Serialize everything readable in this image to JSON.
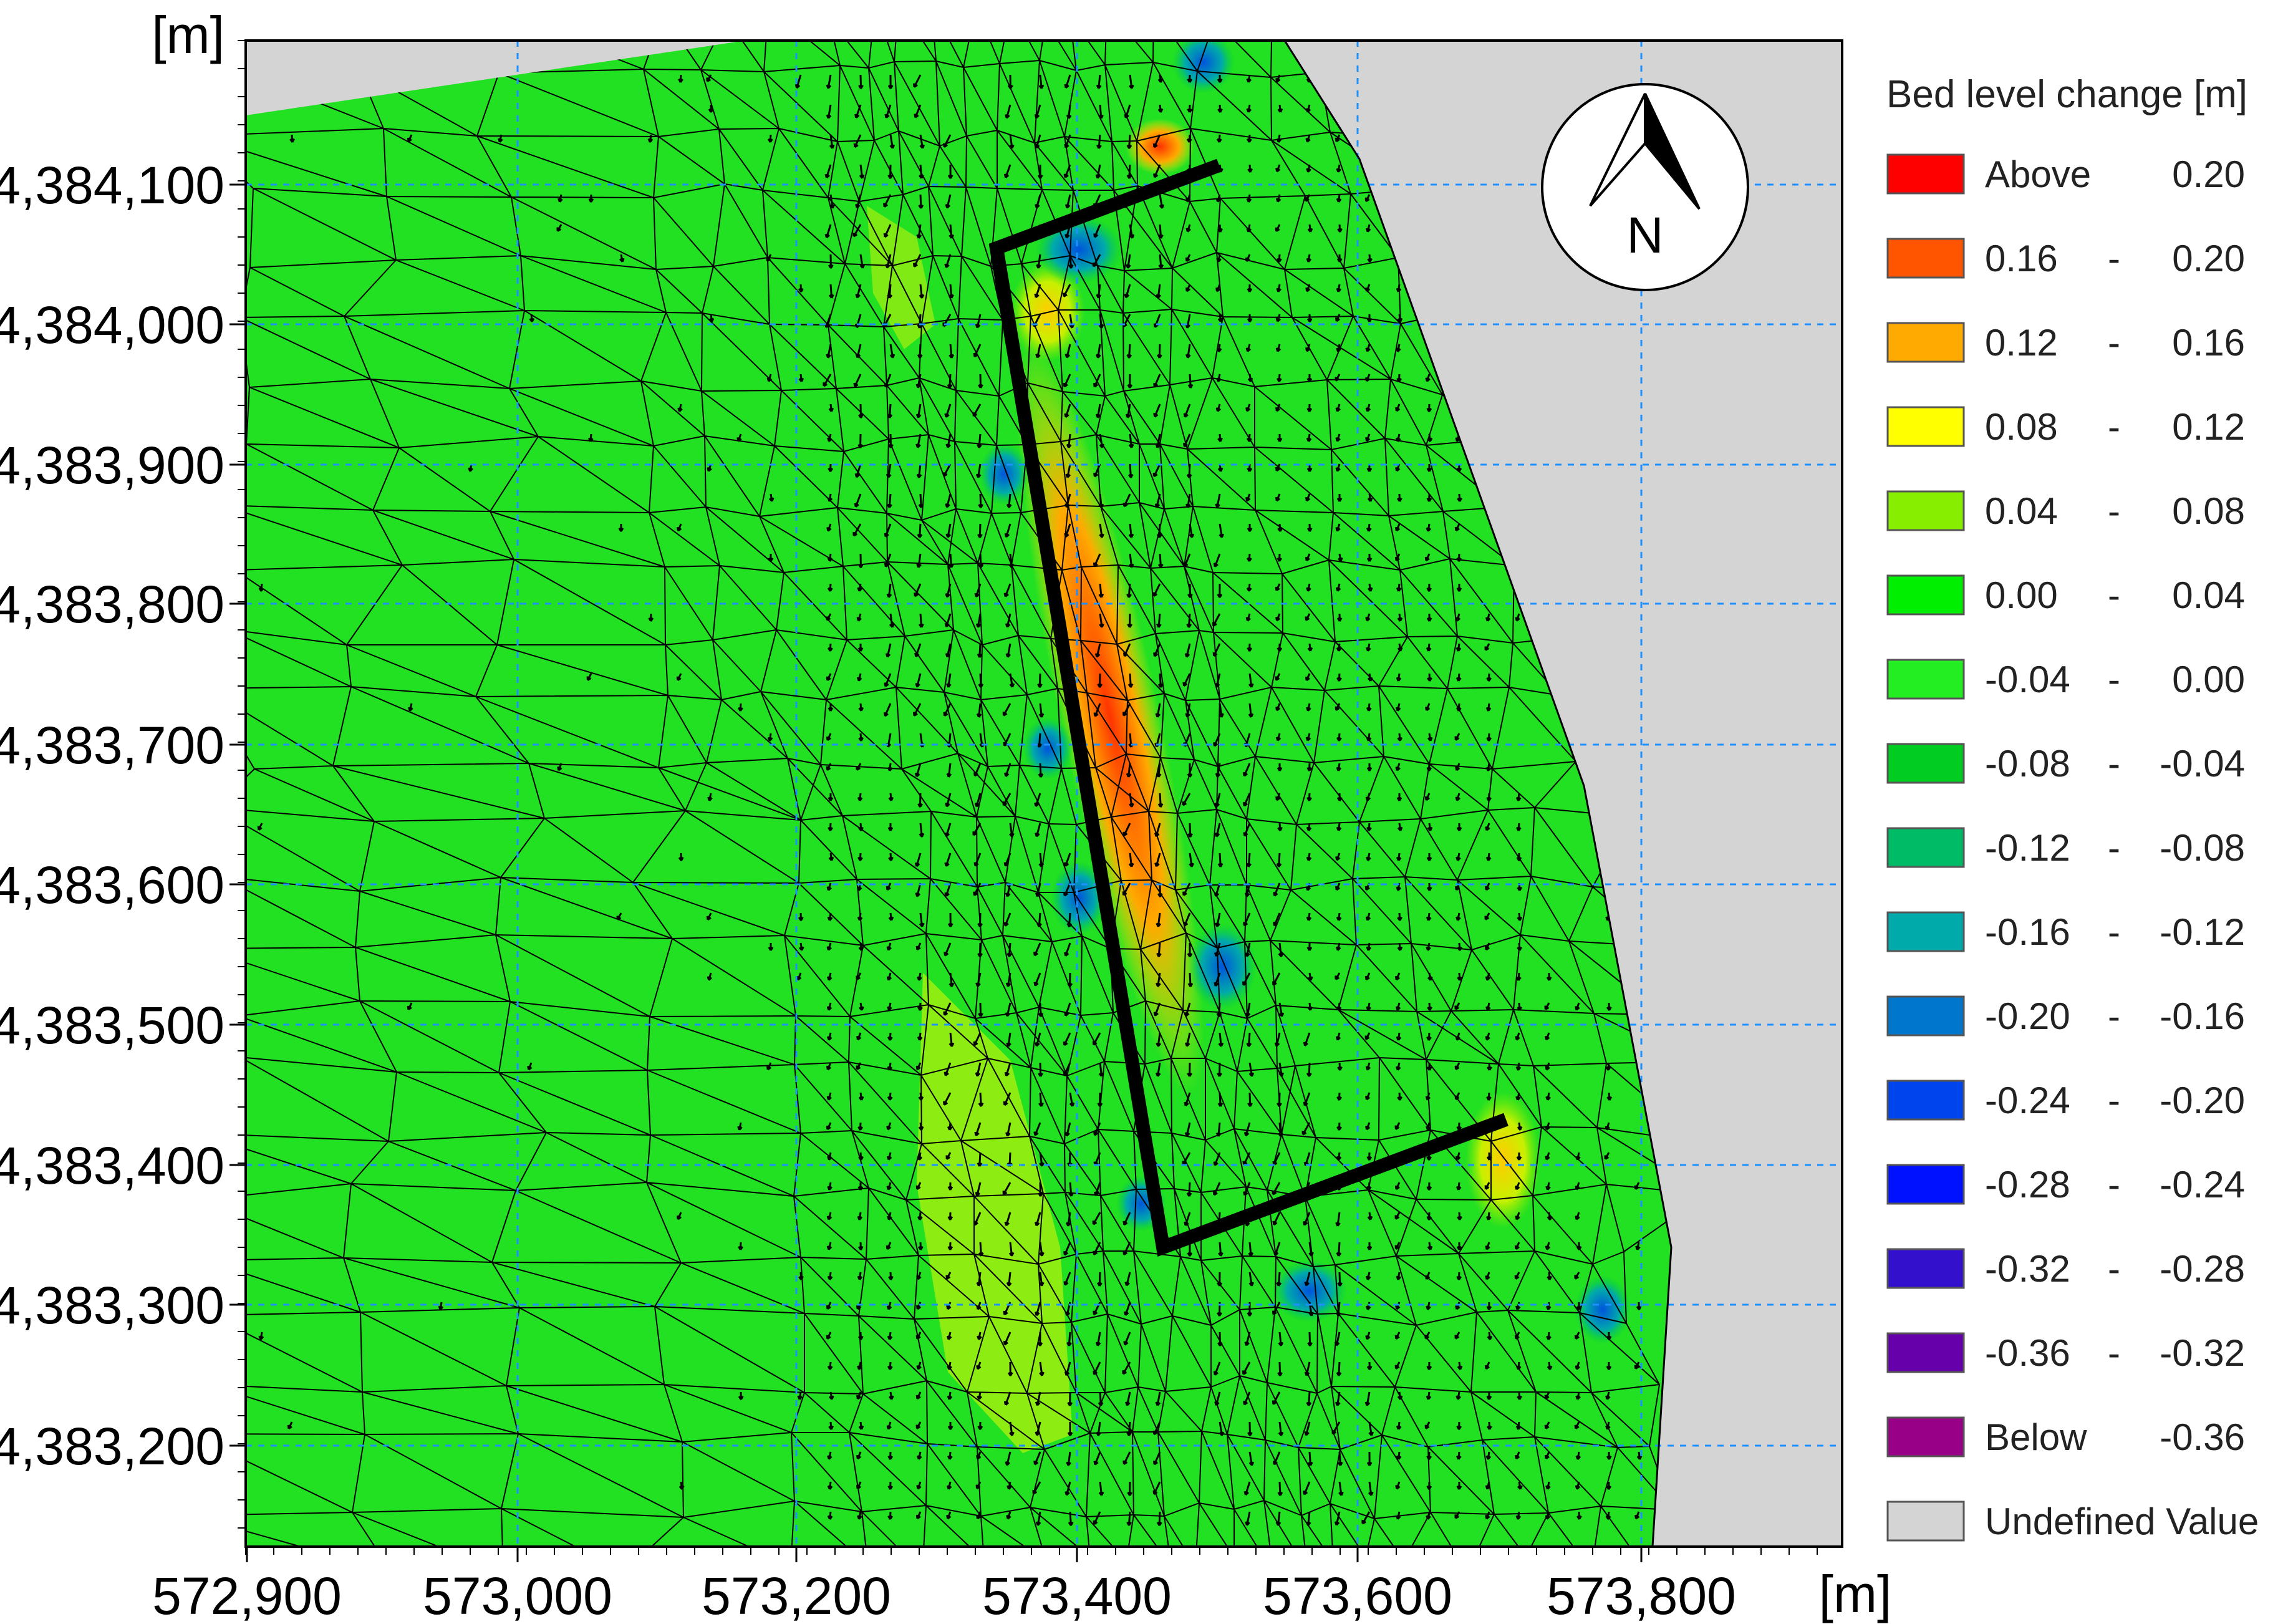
{
  "map": {
    "x_unit_label": "[m]",
    "y_unit_label": "[m]",
    "x_ticks": [
      "572,900",
      "573,000",
      "573,200",
      "573,400",
      "573,600",
      "573,800"
    ],
    "y_ticks": [
      "4,384,100",
      "4,384,000",
      "4,383,900",
      "4,383,800",
      "4,383,700",
      "4,383,600",
      "4,383,500",
      "4,383,400",
      "4,383,300",
      "4,383,200"
    ],
    "north_label": "N"
  },
  "legend": {
    "title": "Bed level change [m]",
    "items": [
      {
        "lo": "Above",
        "sep": "",
        "hi": "0.20",
        "color": "#ff0000"
      },
      {
        "lo": "0.16",
        "sep": "-",
        "hi": "0.20",
        "color": "#ff5500"
      },
      {
        "lo": "0.12",
        "sep": "-",
        "hi": "0.16",
        "color": "#ffaa00"
      },
      {
        "lo": "0.08",
        "sep": "-",
        "hi": "0.12",
        "color": "#ffff00"
      },
      {
        "lo": "0.04",
        "sep": "-",
        "hi": "0.08",
        "color": "#88ee00"
      },
      {
        "lo": "0.00",
        "sep": "-",
        "hi": "0.04",
        "color": "#00ee00"
      },
      {
        "lo": "-0.04",
        "sep": "-",
        "hi": "0.00",
        "color": "#22ee22"
      },
      {
        "lo": "-0.08",
        "sep": "-",
        "hi": "-0.04",
        "color": "#00cc22"
      },
      {
        "lo": "-0.12",
        "sep": "-",
        "hi": "-0.08",
        "color": "#00bb66"
      },
      {
        "lo": "-0.16",
        "sep": "-",
        "hi": "-0.12",
        "color": "#00aaaa"
      },
      {
        "lo": "-0.20",
        "sep": "-",
        "hi": "-0.16",
        "color": "#0077cc"
      },
      {
        "lo": "-0.24",
        "sep": "-",
        "hi": "-0.20",
        "color": "#0044ee"
      },
      {
        "lo": "-0.28",
        "sep": "-",
        "hi": "-0.24",
        "color": "#0011ff"
      },
      {
        "lo": "-0.32",
        "sep": "-",
        "hi": "-0.28",
        "color": "#3311cc"
      },
      {
        "lo": "-0.36",
        "sep": "-",
        "hi": "-0.32",
        "color": "#6600aa"
      },
      {
        "lo": "Below",
        "sep": "",
        "hi": "-0.36",
        "color": "#990088"
      },
      {
        "lo": "Undefined Value",
        "sep": "",
        "hi": "",
        "color": "#d4d4d4"
      }
    ]
  }
}
